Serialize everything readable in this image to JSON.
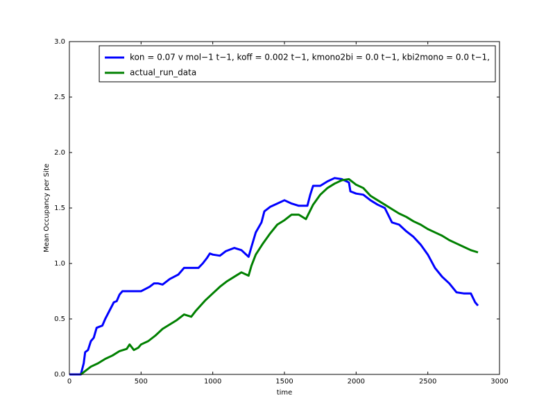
{
  "chart_data": {
    "type": "line",
    "x_label": "time",
    "y_label": "Mean Occupancy per Site",
    "xlim": [
      0,
      3000
    ],
    "ylim": [
      0,
      3.0
    ],
    "xticks": [
      0,
      500,
      1000,
      1500,
      2000,
      2500,
      3000
    ],
    "yticks": [
      {
        "value": 0,
        "label": "0.0"
      },
      {
        "value": 0.5,
        "label": "0.5"
      },
      {
        "value": 1,
        "label": "1.0"
      },
      {
        "value": 1.5,
        "label": "1.5"
      },
      {
        "value": 2,
        "label": "2.0"
      },
      {
        "value": 2.5,
        "label": "2.5"
      },
      {
        "value": 3,
        "label": "3.0"
      }
    ],
    "legend": "upper right",
    "series": [
      {
        "name": "kon = 0.07 v mol−1 t−1, koff = 0.002 t−1, kmono2bi = 0.0 t−1, kbi2mono = 0.0 t−1,",
        "color": "#0000ff",
        "x": [
          0,
          80,
          90,
          100,
          110,
          130,
          150,
          170,
          190,
          210,
          230,
          250,
          270,
          290,
          310,
          330,
          350,
          370,
          400,
          500,
          530,
          560,
          590,
          620,
          650,
          700,
          760,
          800,
          900,
          930,
          960,
          980,
          1000,
          1050,
          1090,
          1150,
          1200,
          1250,
          1270,
          1300,
          1340,
          1360,
          1400,
          1450,
          1500,
          1550,
          1600,
          1660,
          1680,
          1700,
          1750,
          1800,
          1850,
          1900,
          1950,
          1960,
          2000,
          2050,
          2100,
          2150,
          2200,
          2250,
          2300,
          2350,
          2400,
          2450,
          2500,
          2550,
          2600,
          2650,
          2700,
          2750,
          2800,
          2830,
          2850
        ],
        "values": [
          0,
          0,
          0.05,
          0.1,
          0.2,
          0.22,
          0.3,
          0.33,
          0.42,
          0.43,
          0.44,
          0.5,
          0.55,
          0.6,
          0.65,
          0.66,
          0.72,
          0.75,
          0.75,
          0.75,
          0.77,
          0.79,
          0.82,
          0.82,
          0.81,
          0.86,
          0.9,
          0.96,
          0.96,
          1.0,
          1.05,
          1.09,
          1.08,
          1.07,
          1.11,
          1.14,
          1.12,
          1.06,
          1.15,
          1.28,
          1.37,
          1.47,
          1.51,
          1.54,
          1.57,
          1.54,
          1.52,
          1.52,
          1.62,
          1.7,
          1.7,
          1.74,
          1.77,
          1.76,
          1.73,
          1.65,
          1.63,
          1.62,
          1.57,
          1.53,
          1.5,
          1.37,
          1.35,
          1.29,
          1.24,
          1.17,
          1.08,
          0.96,
          0.88,
          0.82,
          0.74,
          0.73,
          0.73,
          0.65,
          0.62
        ]
      },
      {
        "name": "actual_run_data",
        "color": "#008000",
        "x": [
          80,
          100,
          150,
          200,
          250,
          300,
          350,
          400,
          420,
          450,
          480,
          500,
          550,
          600,
          650,
          700,
          750,
          800,
          850,
          880,
          950,
          1000,
          1050,
          1100,
          1150,
          1200,
          1250,
          1270,
          1300,
          1350,
          1400,
          1450,
          1500,
          1550,
          1600,
          1650,
          1700,
          1750,
          1800,
          1850,
          1900,
          1950,
          2000,
          2050,
          2100,
          2150,
          2200,
          2250,
          2300,
          2350,
          2400,
          2450,
          2500,
          2550,
          2600,
          2650,
          2700,
          2750,
          2800,
          2850
        ],
        "values": [
          0,
          0.02,
          0.07,
          0.1,
          0.14,
          0.17,
          0.21,
          0.23,
          0.27,
          0.22,
          0.24,
          0.27,
          0.3,
          0.35,
          0.41,
          0.45,
          0.49,
          0.54,
          0.52,
          0.57,
          0.67,
          0.73,
          0.79,
          0.84,
          0.88,
          0.92,
          0.89,
          0.98,
          1.08,
          1.18,
          1.27,
          1.35,
          1.39,
          1.44,
          1.44,
          1.4,
          1.53,
          1.62,
          1.68,
          1.72,
          1.75,
          1.76,
          1.71,
          1.68,
          1.61,
          1.57,
          1.53,
          1.49,
          1.45,
          1.42,
          1.38,
          1.35,
          1.31,
          1.28,
          1.25,
          1.21,
          1.18,
          1.15,
          1.12,
          1.1
        ]
      }
    ]
  }
}
